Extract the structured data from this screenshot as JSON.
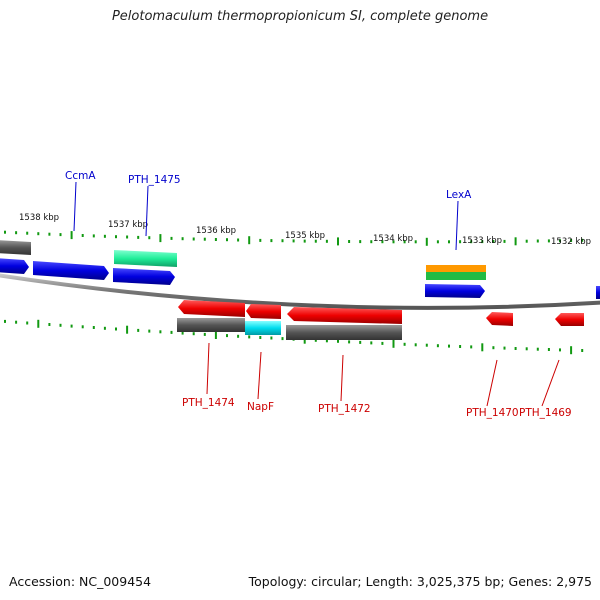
{
  "title": "Pelotomaculum thermopropionicum SI, complete genome",
  "footer": {
    "accession": "Accession: NC_009454",
    "summary": "Topology: circular; Length: 3,025,375 bp; Genes: 2,975"
  },
  "scale_labels": [
    "1538 kbp",
    "1537 kbp",
    "1536 kbp",
    "1535 kbp",
    "1534 kbp",
    "1533 kbp",
    "1532 kbp"
  ],
  "gene_labels_top": [
    "CcmA",
    "PTH_1475",
    "LexA"
  ],
  "gene_labels_bottom": [
    "PTH_1474",
    "NapF",
    "PTH_1472",
    "PTH_1470",
    "PTH_1469"
  ],
  "colors": {
    "forward_cds": "#0000dd",
    "reverse_cds": "#ee0000",
    "gray_feature": "#555555",
    "cyan_feature": "#00ddee",
    "green_feature": "#20ee99",
    "orange_feature": "#ff9900",
    "tick": "#119911",
    "label_forward": "#0000cc",
    "label_reverse": "#cc0000"
  }
}
